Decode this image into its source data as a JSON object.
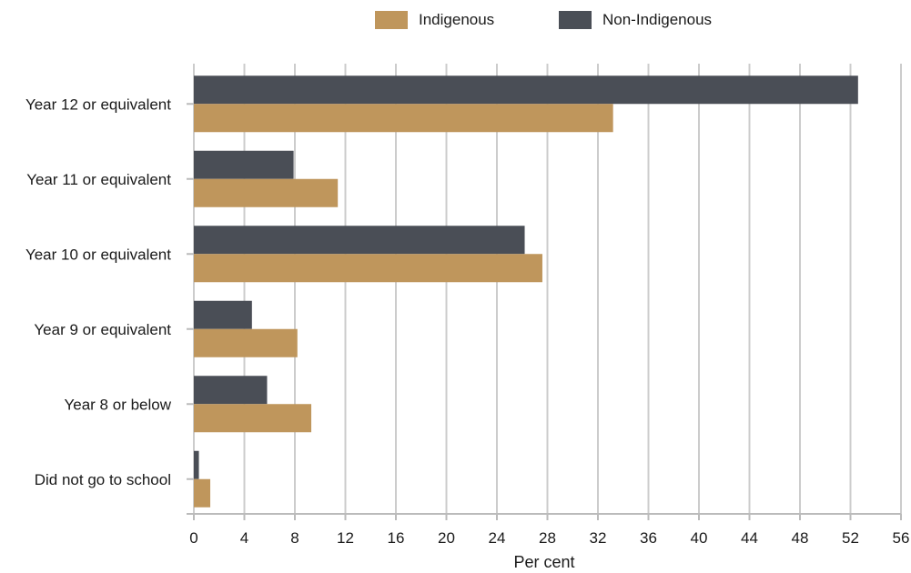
{
  "legend": {
    "items": [
      {
        "label": "Indigenous",
        "color": "#BF965C"
      },
      {
        "label": "Non-Indigenous",
        "color": "#4A4E56"
      }
    ]
  },
  "chart_data": {
    "type": "bar",
    "orientation": "horizontal",
    "categories": [
      "Year 12 or equivalent",
      "Year 11 or equivalent",
      "Year 10 or equivalent",
      "Year 9 or equivalent",
      "Year 8 or below",
      "Did not go to school"
    ],
    "series": [
      {
        "name": "Non-Indigenous",
        "color": "#4A4E56",
        "values": [
          52.6,
          7.9,
          26.2,
          4.6,
          5.8,
          0.4
        ]
      },
      {
        "name": "Indigenous",
        "color": "#BF965C",
        "values": [
          33.2,
          11.4,
          27.6,
          8.2,
          9.3,
          1.3
        ]
      }
    ],
    "xlabel": "Per cent",
    "ylabel": "",
    "xlim": [
      0,
      56
    ],
    "xticks": [
      0,
      4,
      8,
      12,
      16,
      20,
      24,
      28,
      32,
      36,
      40,
      44,
      48,
      52,
      56
    ],
    "grid": true,
    "legend_position": "top-center"
  }
}
